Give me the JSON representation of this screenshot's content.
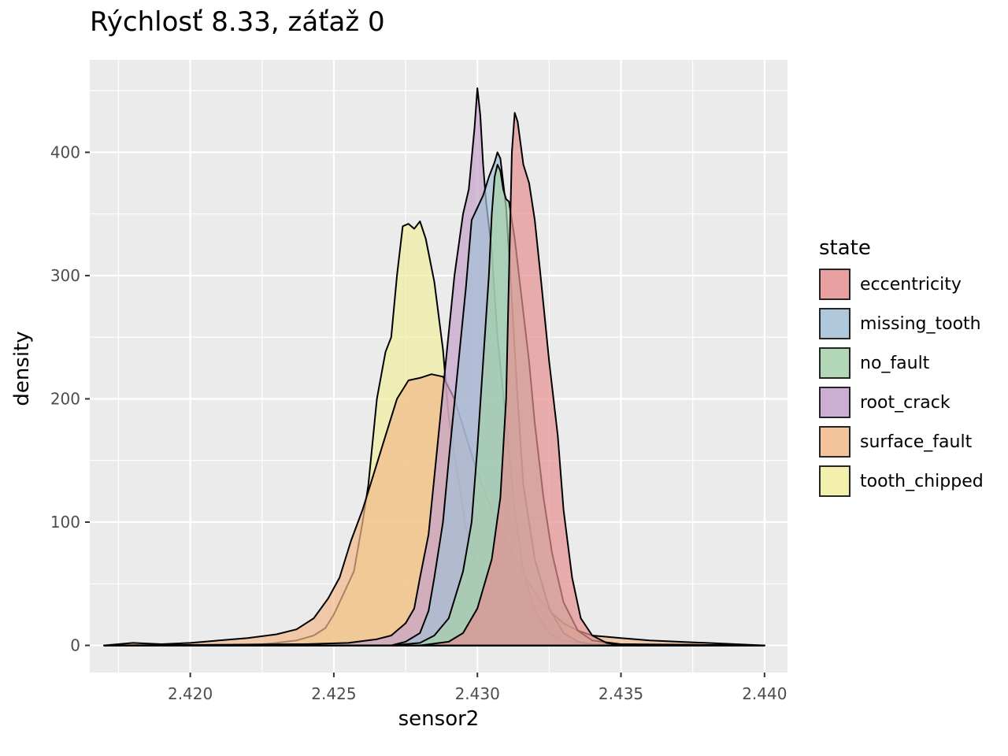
{
  "chart_data": {
    "type": "area",
    "title": "Rýchlosť 8.33, záťaž 0",
    "xlabel": "sensor2",
    "ylabel": "density",
    "xlim": [
      2.4165,
      2.4408
    ],
    "ylim": [
      -22,
      475
    ],
    "x_ticks": [
      "2.420",
      "2.425",
      "2.430",
      "2.435",
      "2.440"
    ],
    "y_ticks": [
      "0",
      "100",
      "200",
      "300",
      "400"
    ],
    "grid": true,
    "legend": {
      "title": "state",
      "position": "right"
    },
    "series": [
      {
        "name": "tooth_chipped",
        "color": "#f0ee9e",
        "points": [
          [
            2.417,
            0
          ],
          [
            2.419,
            0
          ],
          [
            2.421,
            0
          ],
          [
            2.4225,
            1
          ],
          [
            2.423,
            2
          ],
          [
            2.4237,
            4
          ],
          [
            2.4243,
            8
          ],
          [
            2.4247,
            14
          ],
          [
            2.425,
            25
          ],
          [
            2.4253,
            40
          ],
          [
            2.4257,
            60
          ],
          [
            2.426,
            100
          ],
          [
            2.4262,
            130
          ],
          [
            2.4265,
            200
          ],
          [
            2.4268,
            238
          ],
          [
            2.427,
            250
          ],
          [
            2.4272,
            300
          ],
          [
            2.4274,
            340
          ],
          [
            2.4276,
            342
          ],
          [
            2.4278,
            338
          ],
          [
            2.428,
            344
          ],
          [
            2.4282,
            330
          ],
          [
            2.4285,
            295
          ],
          [
            2.4288,
            240
          ],
          [
            2.429,
            185
          ],
          [
            2.4293,
            140
          ],
          [
            2.4296,
            95
          ],
          [
            2.43,
            60
          ],
          [
            2.4305,
            35
          ],
          [
            2.431,
            18
          ],
          [
            2.4315,
            7
          ],
          [
            2.432,
            2
          ],
          [
            2.433,
            0
          ],
          [
            2.44,
            0
          ]
        ]
      },
      {
        "name": "surface_fault",
        "color": "#f2b98a",
        "points": [
          [
            2.417,
            0
          ],
          [
            2.418,
            2
          ],
          [
            2.419,
            1
          ],
          [
            2.42,
            2
          ],
          [
            2.421,
            4
          ],
          [
            2.422,
            6
          ],
          [
            2.423,
            9
          ],
          [
            2.4237,
            13
          ],
          [
            2.4243,
            22
          ],
          [
            2.4248,
            38
          ],
          [
            2.4252,
            55
          ],
          [
            2.4256,
            85
          ],
          [
            2.426,
            110
          ],
          [
            2.4264,
            140
          ],
          [
            2.4268,
            170
          ],
          [
            2.4272,
            200
          ],
          [
            2.4276,
            215
          ],
          [
            2.428,
            217
          ],
          [
            2.4284,
            220
          ],
          [
            2.4288,
            218
          ],
          [
            2.4292,
            200
          ],
          [
            2.4296,
            170
          ],
          [
            2.43,
            140
          ],
          [
            2.4305,
            110
          ],
          [
            2.431,
            85
          ],
          [
            2.4315,
            62
          ],
          [
            2.432,
            43
          ],
          [
            2.4325,
            28
          ],
          [
            2.433,
            18
          ],
          [
            2.4335,
            12
          ],
          [
            2.434,
            8
          ],
          [
            2.435,
            6
          ],
          [
            2.436,
            4
          ],
          [
            2.437,
            3
          ],
          [
            2.438,
            2
          ],
          [
            2.439,
            1
          ],
          [
            2.44,
            0
          ]
        ]
      },
      {
        "name": "root_crack",
        "color": "#c4a1cb",
        "points": [
          [
            2.417,
            0
          ],
          [
            2.424,
            1
          ],
          [
            2.4255,
            2
          ],
          [
            2.4265,
            5
          ],
          [
            2.427,
            8
          ],
          [
            2.4275,
            18
          ],
          [
            2.4278,
            30
          ],
          [
            2.428,
            55
          ],
          [
            2.4283,
            90
          ],
          [
            2.4286,
            160
          ],
          [
            2.4289,
            230
          ],
          [
            2.4292,
            300
          ],
          [
            2.4295,
            350
          ],
          [
            2.4297,
            370
          ],
          [
            2.4299,
            420
          ],
          [
            2.43,
            452
          ],
          [
            2.4301,
            430
          ],
          [
            2.4302,
            390
          ],
          [
            2.4303,
            360
          ],
          [
            2.4305,
            320
          ],
          [
            2.4307,
            250
          ],
          [
            2.431,
            180
          ],
          [
            2.4313,
            110
          ],
          [
            2.4316,
            60
          ],
          [
            2.432,
            28
          ],
          [
            2.4325,
            10
          ],
          [
            2.433,
            4
          ],
          [
            2.434,
            1
          ],
          [
            2.44,
            0
          ]
        ]
      },
      {
        "name": "missing_tooth",
        "color": "#a3bfd6",
        "points": [
          [
            2.417,
            0
          ],
          [
            2.427,
            0
          ],
          [
            2.4275,
            3
          ],
          [
            2.428,
            10
          ],
          [
            2.4283,
            28
          ],
          [
            2.4285,
            55
          ],
          [
            2.4288,
            100
          ],
          [
            2.429,
            150
          ],
          [
            2.4293,
            220
          ],
          [
            2.4296,
            290
          ],
          [
            2.4298,
            345
          ],
          [
            2.43,
            355
          ],
          [
            2.4302,
            365
          ],
          [
            2.4304,
            380
          ],
          [
            2.4306,
            392
          ],
          [
            2.4307,
            400
          ],
          [
            2.4308,
            395
          ],
          [
            2.431,
            355
          ],
          [
            2.4312,
            280
          ],
          [
            2.4314,
            200
          ],
          [
            2.4316,
            130
          ],
          [
            2.432,
            70
          ],
          [
            2.4325,
            30
          ],
          [
            2.433,
            10
          ],
          [
            2.4335,
            3
          ],
          [
            2.434,
            1
          ],
          [
            2.44,
            0
          ]
        ]
      },
      {
        "name": "no_fault",
        "color": "#a5d1aa",
        "points": [
          [
            2.417,
            0
          ],
          [
            2.427,
            0
          ],
          [
            2.428,
            2
          ],
          [
            2.4285,
            8
          ],
          [
            2.429,
            22
          ],
          [
            2.4295,
            60
          ],
          [
            2.4298,
            100
          ],
          [
            2.43,
            160
          ],
          [
            2.4302,
            230
          ],
          [
            2.4304,
            300
          ],
          [
            2.4305,
            350
          ],
          [
            2.4306,
            380
          ],
          [
            2.4307,
            390
          ],
          [
            2.4308,
            385
          ],
          [
            2.4309,
            370
          ],
          [
            2.431,
            362
          ],
          [
            2.4311,
            360
          ],
          [
            2.4313,
            330
          ],
          [
            2.4315,
            290
          ],
          [
            2.4318,
            230
          ],
          [
            2.432,
            180
          ],
          [
            2.4323,
            120
          ],
          [
            2.4326,
            75
          ],
          [
            2.433,
            35
          ],
          [
            2.4335,
            12
          ],
          [
            2.434,
            4
          ],
          [
            2.435,
            1
          ],
          [
            2.44,
            0
          ]
        ]
      },
      {
        "name": "eccentricity",
        "color": "#e59091",
        "points": [
          [
            2.417,
            0
          ],
          [
            2.428,
            0
          ],
          [
            2.429,
            3
          ],
          [
            2.4295,
            10
          ],
          [
            2.43,
            30
          ],
          [
            2.4305,
            70
          ],
          [
            2.4308,
            120
          ],
          [
            2.431,
            200
          ],
          [
            2.4311,
            300
          ],
          [
            2.4312,
            400
          ],
          [
            2.4313,
            432
          ],
          [
            2.4314,
            425
          ],
          [
            2.4316,
            390
          ],
          [
            2.4318,
            375
          ],
          [
            2.432,
            345
          ],
          [
            2.4322,
            300
          ],
          [
            2.4325,
            230
          ],
          [
            2.4328,
            170
          ],
          [
            2.433,
            110
          ],
          [
            2.4333,
            55
          ],
          [
            2.4336,
            22
          ],
          [
            2.434,
            8
          ],
          [
            2.4345,
            2
          ],
          [
            2.435,
            0
          ],
          [
            2.44,
            0
          ]
        ]
      }
    ]
  }
}
